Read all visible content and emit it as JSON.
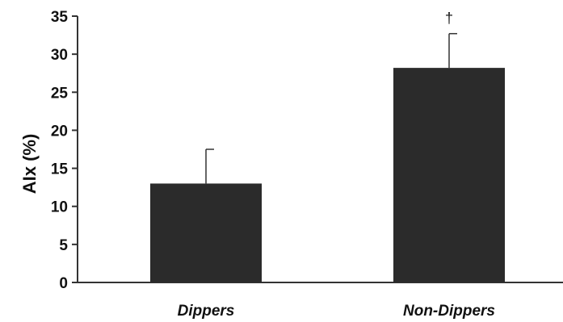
{
  "chart_data": {
    "type": "bar",
    "categories": [
      "Dippers",
      "Non-Dippers"
    ],
    "values": [
      13,
      28.2
    ],
    "error_plus": [
      4.5,
      4.5
    ],
    "annotations": [
      "",
      "†"
    ],
    "ylabel": "AIx (%)",
    "xlabel": "",
    "ylim": [
      0,
      35
    ],
    "yticks": [
      0,
      5,
      10,
      15,
      20,
      25,
      30,
      35
    ],
    "grid": false,
    "legend": "none",
    "colors": {
      "bar": "#2b2b2b",
      "axis": "#333333",
      "text": "#111111"
    }
  }
}
